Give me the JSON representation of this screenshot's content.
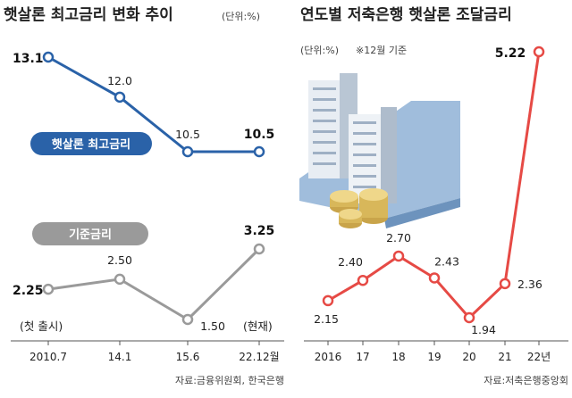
{
  "colors": {
    "blue": "#2a62a8",
    "gray": "#9a9a9a",
    "red": "#e64a45",
    "axis": "#555555"
  },
  "left_panel": {
    "title": "햇살론 최고금리 변화 추이",
    "unit": "(단위:%)",
    "label_top": "햇살론 최고금리",
    "label_bottom": "기준금리",
    "note_first": "(첫 출시)",
    "note_now": "(현재)",
    "source": "자료:금융위원회, 한국은행"
  },
  "right_panel": {
    "title": "연도별 저축은행 햇살론 조달금리",
    "unit": "(단위:%)",
    "note": "※12월 기준",
    "source": "자료:저축은행중앙회"
  },
  "chart_data": [
    {
      "type": "line",
      "categories": [
        "2010.7",
        "14.1",
        "15.6",
        "22.12월"
      ],
      "series": [
        {
          "name": "햇살론 최고금리",
          "values": [
            13.1,
            12.0,
            10.5,
            10.5
          ],
          "labels": [
            "13.1",
            "12.0",
            "10.5",
            "10.5"
          ]
        },
        {
          "name": "기준금리",
          "values": [
            2.25,
            2.5,
            1.5,
            3.25
          ],
          "labels": [
            "2.25",
            "2.50",
            "1.50",
            "3.25"
          ]
        }
      ]
    },
    {
      "type": "line",
      "categories": [
        "2016",
        "17",
        "18",
        "19",
        "20",
        "21",
        "22년"
      ],
      "series": [
        {
          "values": [
            2.15,
            2.4,
            2.7,
            2.43,
            1.94,
            2.36,
            5.22
          ],
          "labels": [
            "2.15",
            "2.40",
            "2.70",
            "2.43",
            "1.94",
            "2.36",
            "5.22"
          ]
        }
      ]
    }
  ]
}
